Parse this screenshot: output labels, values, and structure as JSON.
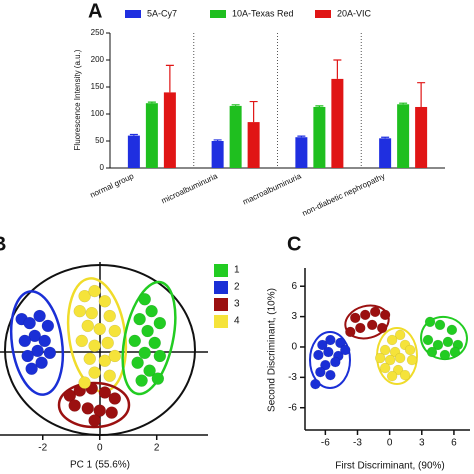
{
  "chart_data": [
    {
      "type": "bar",
      "panel": "A",
      "ylabel": "Fluorescence Intensity (a.u.)",
      "categories": [
        "normal group",
        "microalbuminuria",
        "macroalbuminuria",
        "non-diabetic nephropathy"
      ],
      "series": [
        {
          "name": "5A-Cy7",
          "color": "#1f2fe0",
          "values": [
            60,
            50,
            57,
            55
          ],
          "errors": [
            2,
            2,
            2,
            2
          ]
        },
        {
          "name": "10A-Texas Red",
          "color": "#1fbf1f",
          "values": [
            120,
            115,
            113,
            118
          ],
          "errors": [
            2,
            2,
            2,
            2
          ]
        },
        {
          "name": "20A-VIC",
          "color": "#e01515",
          "values": [
            140,
            85,
            165,
            113
          ],
          "errors": [
            50,
            38,
            35,
            45
          ]
        }
      ],
      "ylim": [
        0,
        250
      ],
      "yticks": [
        0,
        50,
        100,
        150,
        200,
        250
      ],
      "grid": false,
      "legend": "top"
    },
    {
      "type": "scatter",
      "panel": "B",
      "xlabel": "PC 1 (55.6%)",
      "xlim": [
        -3.5,
        3.8
      ],
      "xticks": [
        -2,
        0,
        2
      ],
      "ylim": [
        -2.9,
        3.1
      ],
      "legend": "right",
      "series": [
        {
          "name": "1",
          "color": "#22cc22",
          "x": [
            1.58,
            1.82,
            1.4,
            2.11,
            1.68,
            1.23,
            1.93,
            1.58,
            2.11,
            1.33,
            1.75,
            1.47,
            2.04
          ],
          "values": [
            1.89,
            1.47,
            1.19,
            1.05,
            0.77,
            0.42,
            0.35,
            0,
            -0.11,
            -0.35,
            -0.63,
            -0.98,
            -0.91
          ]
        },
        {
          "name": "2",
          "color": "#1a2fd6",
          "x": [
            -2.74,
            -2.46,
            -2.11,
            -1.82,
            -2.28,
            -2.63,
            -1.93,
            -2.18,
            -2.53,
            -1.75,
            -2.04,
            -2.39
          ],
          "values": [
            1.19,
            1.05,
            1.3,
            0.95,
            0.6,
            0.42,
            0.42,
            0.07,
            -0.11,
            0,
            -0.35,
            -0.56
          ]
        },
        {
          "name": "3",
          "color": "#9b1010",
          "x": [
            -1.05,
            -0.7,
            -0.28,
            0.18,
            0.53,
            -0.88,
            -0.42,
            0,
            0.42,
            -0.18
          ],
          "values": [
            -1.51,
            -1.33,
            -1.26,
            -1.4,
            -1.61,
            -1.86,
            -1.96,
            -2.04,
            -2.11,
            -2.39
          ]
        },
        {
          "name": "4",
          "color": "#f5e33a",
          "x": [
            -0.53,
            -0.18,
            0.18,
            -0.7,
            -0.28,
            0.35,
            -0.42,
            0,
            0.53,
            -0.63,
            -0.18,
            0.28,
            -0.35,
            0.18,
            0.53,
            -0.18,
            0.35,
            -0.53
          ],
          "values": [
            2.0,
            2.18,
            1.82,
            1.47,
            1.4,
            1.3,
            0.95,
            0.84,
            0.77,
            0.42,
            0.25,
            0.35,
            -0.21,
            -0.28,
            -0.11,
            -0.7,
            -0.81,
            -1.05
          ]
        }
      ]
    },
    {
      "type": "scatter",
      "panel": "C",
      "xlabel": "First Discriminant, (90%)",
      "ylabel": "Second Discriminant, (10%)",
      "xlim": [
        -7.9,
        7.5
      ],
      "xticks": [
        -6,
        -3,
        0,
        3,
        6
      ],
      "ylim": [
        -8.2,
        7.8
      ],
      "yticks": [
        -6,
        -3,
        0,
        3,
        6
      ],
      "series": [
        {
          "color": "#1a2fd6",
          "x": [
            -6.28,
            -5.53,
            -4.6,
            -6.65,
            -5.72,
            -4.79,
            -4.14,
            -6.0,
            -5.07,
            -6.47,
            -5.53,
            -6.93
          ],
          "values": [
            0.2,
            0.69,
            0.4,
            -0.79,
            -0.5,
            -0.89,
            -0.3,
            -1.79,
            -1.49,
            -2.48,
            -2.78,
            -3.67
          ]
        },
        {
          "color": "#9b1010",
          "x": [
            -3.21,
            -2.28,
            -1.35,
            -0.42,
            -2.74,
            -1.63,
            -0.7,
            -3.67
          ],
          "values": [
            2.88,
            3.17,
            3.47,
            3.17,
            1.88,
            2.18,
            1.88,
            1.49
          ]
        },
        {
          "color": "#f5e33a",
          "x": [
            0.98,
            0.23,
            1.44,
            -0.42,
            0.51,
            1.91,
            -0.88,
            0.05,
            0.98,
            2.09,
            -0.42,
            0.79,
            1.44,
            0.23
          ],
          "values": [
            1.19,
            0.69,
            0.2,
            -0.3,
            -0.5,
            -0.3,
            -1.09,
            -1.29,
            -1.09,
            -1.29,
            -2.08,
            -2.28,
            -2.78,
            -2.88
          ]
        },
        {
          "color": "#22cc22",
          "x": [
            3.77,
            4.7,
            5.81,
            3.58,
            4.51,
            5.44,
            6.37,
            3.95,
            5.16,
            6.09
          ],
          "values": [
            2.48,
            2.18,
            1.69,
            0.69,
            0.2,
            0.5,
            0.2,
            -0.5,
            -0.79,
            -0.5
          ]
        }
      ]
    }
  ]
}
